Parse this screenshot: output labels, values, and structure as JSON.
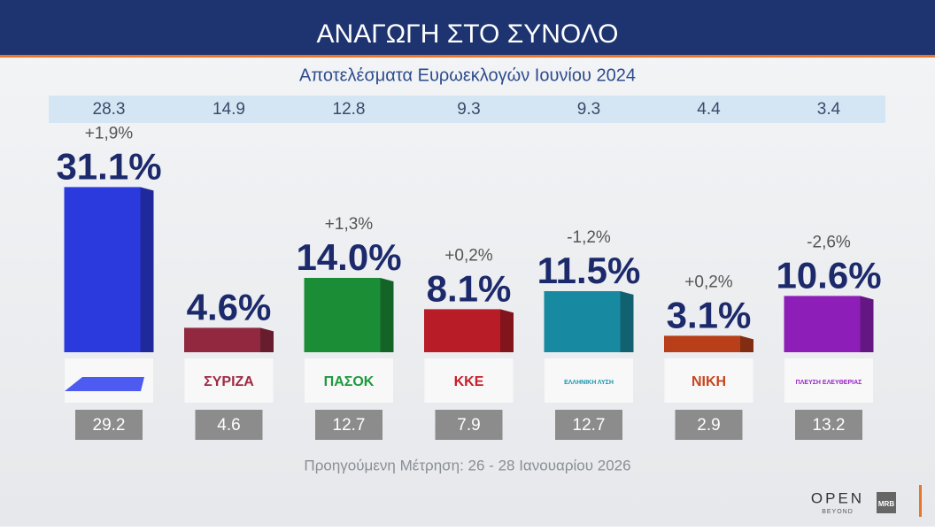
{
  "chart_data": {
    "type": "bar",
    "title": "ΑΝΑΓΩΓΗ ΣΤΟ ΣΥΝΟΛΟ",
    "subtitle": "Αποτελέσματα Ευρωεκλογών Ιουνίου 2024",
    "categories": [
      null,
      "ΣΥΡΙΖΑ",
      "ΠΑΣΟΚ",
      "ΚΚΕ",
      "ΕΛΛΗΝΙΚΗ ΛΥΣΗ",
      "ΝΙΚΗ",
      "ΠΛΕΥΣΗ ΕΛΕΥΘΕΡΙΑΣ"
    ],
    "values": [
      31.1,
      4.6,
      14.0,
      8.1,
      11.5,
      3.1,
      10.6
    ],
    "value_labels": [
      "31.1%",
      "4.6%",
      "14.0%",
      "8.1%",
      "11.5%",
      "3.1%",
      "10.6%"
    ],
    "changes": [
      "+1,9%",
      null,
      "+1,3%",
      "+0,2%",
      "-1,2%",
      "+0,2%",
      "-2,6%"
    ],
    "euro_2024": [
      28.3,
      14.9,
      12.8,
      9.3,
      9.3,
      4.4,
      3.4
    ],
    "previous": [
      29.2,
      4.6,
      12.7,
      7.9,
      12.7,
      2.9,
      13.2
    ],
    "colors": [
      "#2f3ff0",
      "#9e2c45",
      "#1e9a3c",
      "#c81f2b",
      "#1a95ae",
      "#c8451c",
      "#9a22c8"
    ],
    "footnote": "Προηγούμενη Μέτρηση: 26 - 28 Ιανουαρίου 2026",
    "branding": {
      "channel": "OPEN",
      "tagline": "BEYOND",
      "pollster": "MRB"
    }
  }
}
